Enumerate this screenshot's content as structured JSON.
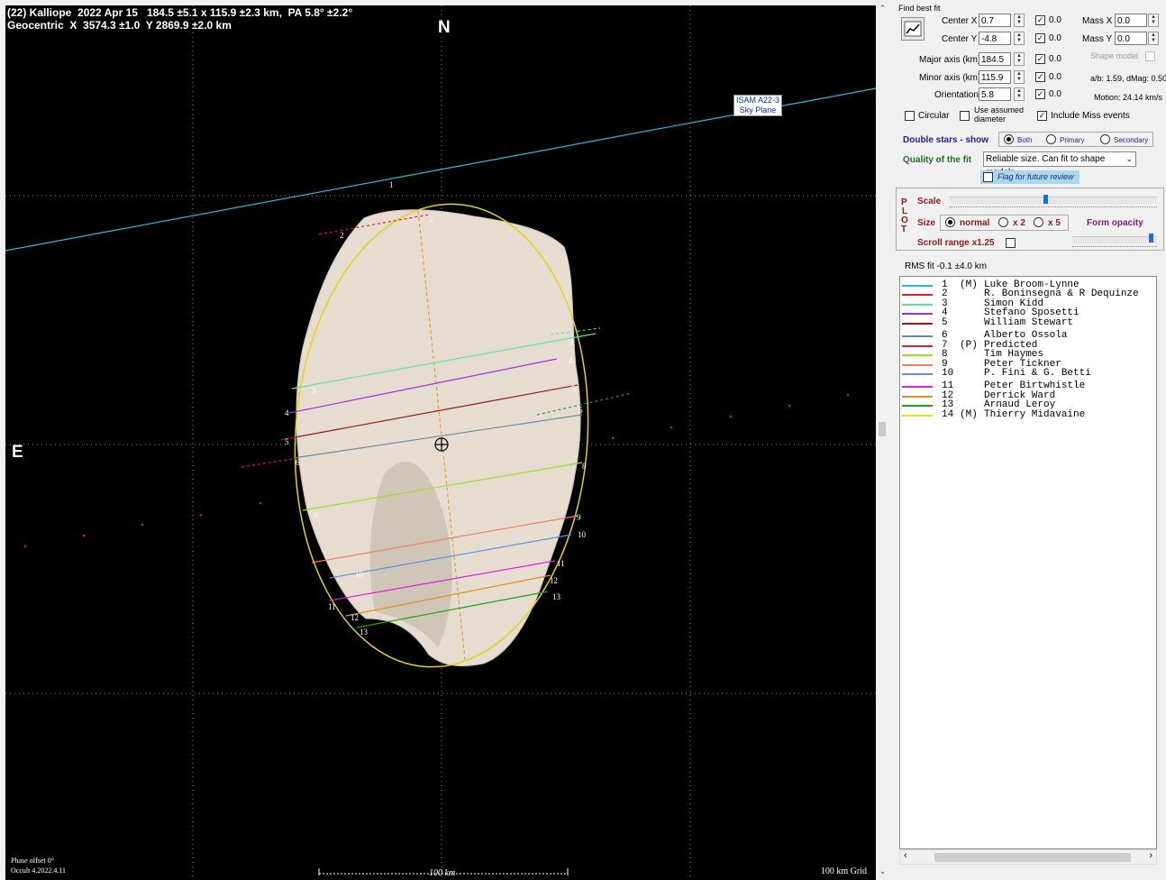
{
  "plot": {
    "header_line1": "(22) Kalliope  2022 Apr 15   184.5 ±5.1 x 115.9 ±2.3 km,  PA 5.8° ±2.2°",
    "header_line2": "Geocentric  X  3574.3 ±1.0  Y 2869.9 ±2.0 km",
    "north_label": "N",
    "east_label": "E",
    "sky_plane_line1": "ISAM A22-3",
    "sky_plane_line2": "Sky Plane",
    "phase_offset": "Phase offset 0°",
    "version": "Occult 4.2022.4.11",
    "scale_label": "100 km",
    "grid_label": "100 km Grid",
    "colors": {
      "background": "#000000",
      "body": "#e6ddd0",
      "fit_ellipse": "#e4d21c",
      "grid": "#ffffff"
    }
  },
  "chords": [
    {
      "n": "1",
      "color": "#20c0d8"
    },
    {
      "n": "2",
      "color": "#e02020"
    },
    {
      "n": "3",
      "color": "#60e0b0"
    },
    {
      "n": "4",
      "color": "#a030e0"
    },
    {
      "n": "5",
      "color": "#901818"
    },
    {
      "n": "6",
      "color": "#6a8ca0"
    },
    {
      "n": "7",
      "color": "#e82020"
    },
    {
      "n": "8",
      "color": "#9ae020"
    },
    {
      "n": "9",
      "color": "#f08060"
    },
    {
      "n": "10",
      "color": "#6090e0"
    },
    {
      "n": "11",
      "color": "#e020e0"
    },
    {
      "n": "12",
      "color": "#e09020"
    },
    {
      "n": "13",
      "color": "#20a020"
    },
    {
      "n": "14",
      "color": "#e0e030"
    }
  ],
  "panel": {
    "find_best_fit": "Find best fit",
    "center_x_label": "Center X",
    "center_x": "0.7",
    "center_x_step": "0.0",
    "center_y_label": "Center Y",
    "center_y": "-4.8",
    "center_y_step": "0.0",
    "mass_x_label": "Mass X",
    "mass_x": "0.0",
    "mass_y_label": "Mass Y",
    "mass_y": "0.0",
    "shape_model": "Shape model",
    "major_label": "Major axis (km)",
    "major": "184.5",
    "major_step": "0.0",
    "minor_label": "Minor axis (km)",
    "minor": "115.9",
    "minor_step": "0.0",
    "orient_label": "Orientation",
    "orient": "5.8",
    "orient_step": "0.0",
    "ab_text": "a/b: 1.59, dMag: 0.50",
    "motion_text": "Motion: 24.14 km/s",
    "circular": "Circular",
    "use_assumed_1": "Use assumed",
    "use_assumed_2": "diameter",
    "include_miss": "Include Miss events",
    "double_stars": "Double stars - show",
    "ds_both": "Both",
    "ds_primary": "Primary",
    "ds_secondary": "Secondary",
    "quality_label": "Quality of the fit",
    "quality_value": "Reliable size. Can fit to shape models",
    "flag_label": "Flag for future review",
    "plot_letters": [
      "P",
      "L",
      "O",
      "T"
    ],
    "scale_label": "Scale",
    "size_label": "Size",
    "size_normal": "normal",
    "size_x2": "x 2",
    "size_x5": "x 5",
    "form_opacity": "Form opacity",
    "scroll_range": "Scroll range x1.25",
    "rms_fit": "RMS fit -0.1 ±4.0 km"
  },
  "legend": [
    {
      "num": "1",
      "tag": "(M)",
      "name": "Luke Broom-Lynne",
      "color": "#20c0d8"
    },
    {
      "num": "2",
      "tag": "",
      "name": "R. Boninsegna & R Dequinze",
      "color": "#e02020"
    },
    {
      "num": "3",
      "tag": "",
      "name": "Simon Kidd",
      "color": "#60e0b0"
    },
    {
      "num": "4",
      "tag": "",
      "name": "Stefano Sposetti",
      "color": "#a030e0"
    },
    {
      "num": "5",
      "tag": "",
      "name": "William Stewart",
      "color": "#901818"
    },
    {
      "num": "6",
      "tag": "",
      "name": "Alberto Ossola",
      "color": "#6a8ca0"
    },
    {
      "num": "7",
      "tag": "(P)",
      "name": "Predicted",
      "color": "#e82020"
    },
    {
      "num": "8",
      "tag": "",
      "name": "Tim Haymes",
      "color": "#9ae020"
    },
    {
      "num": "9",
      "tag": "",
      "name": "Peter Tickner",
      "color": "#f08060"
    },
    {
      "num": "10",
      "tag": "",
      "name": "P. Fini & G. Betti",
      "color": "#6090e0"
    },
    {
      "num": "11",
      "tag": "",
      "name": "Peter Birtwhistle",
      "color": "#e020e0"
    },
    {
      "num": "12",
      "tag": "",
      "name": "Derrick Ward",
      "color": "#e09020"
    },
    {
      "num": "13",
      "tag": "",
      "name": "Arnaud Leroy",
      "color": "#20a020"
    },
    {
      "num": "14",
      "tag": "(M)",
      "name": "Thierry Midavaine",
      "color": "#e0e030"
    }
  ]
}
